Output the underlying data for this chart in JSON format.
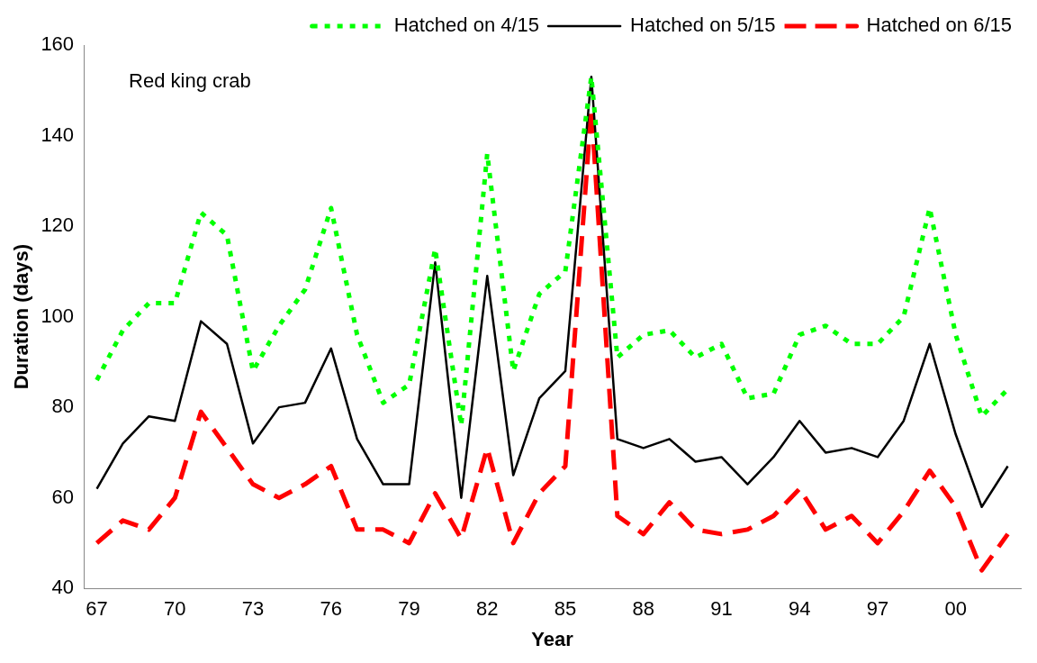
{
  "chart_data": {
    "type": "line",
    "categories": [
      "67",
      null,
      null,
      "70",
      null,
      null,
      "73",
      null,
      null,
      "76",
      null,
      null,
      "79",
      null,
      null,
      "82",
      null,
      null,
      "85",
      null,
      null,
      "88",
      null,
      null,
      "91",
      null,
      null,
      "94",
      null,
      null,
      "97",
      null,
      null,
      "00",
      null,
      null
    ],
    "series": [
      {
        "name": "Hatched on 4/15",
        "color": "#00ff00",
        "line_style": "dotted",
        "values": [
          86,
          97,
          103,
          103,
          123,
          118,
          88,
          98,
          106,
          124,
          96,
          81,
          85,
          115,
          76,
          136,
          88,
          105,
          110,
          153,
          91,
          96,
          97,
          91,
          94,
          82,
          83,
          96,
          98,
          94,
          94,
          100,
          124,
          96,
          78,
          84
        ]
      },
      {
        "name": "Hatched on 5/15",
        "color": "#000000",
        "line_style": "solid",
        "values": [
          62,
          72,
          78,
          77,
          99,
          94,
          72,
          80,
          81,
          93,
          73,
          63,
          63,
          112,
          60,
          109,
          65,
          82,
          88,
          153,
          73,
          71,
          73,
          68,
          69,
          63,
          69,
          77,
          70,
          71,
          69,
          77,
          94,
          74,
          58,
          67
        ]
      },
      {
        "name": "Hatched on 6/15",
        "color": "#ff0000",
        "line_style": "dashed",
        "values": [
          50,
          55,
          53,
          60,
          79,
          71,
          63,
          60,
          63,
          67,
          53,
          53,
          50,
          61,
          51,
          71,
          50,
          61,
          67,
          146,
          56,
          52,
          59,
          53,
          52,
          53,
          56,
          62,
          53,
          56,
          50,
          57,
          66,
          58,
          44,
          52
        ]
      }
    ],
    "xlabel": "Year",
    "ylabel": "Duration (days)",
    "ylim": [
      40,
      160
    ],
    "yticks": [
      40,
      60,
      80,
      100,
      120,
      140,
      160
    ],
    "annotations": [
      "Red king crab"
    ],
    "legend": "top right",
    "grid": false,
    "marker": "none"
  }
}
